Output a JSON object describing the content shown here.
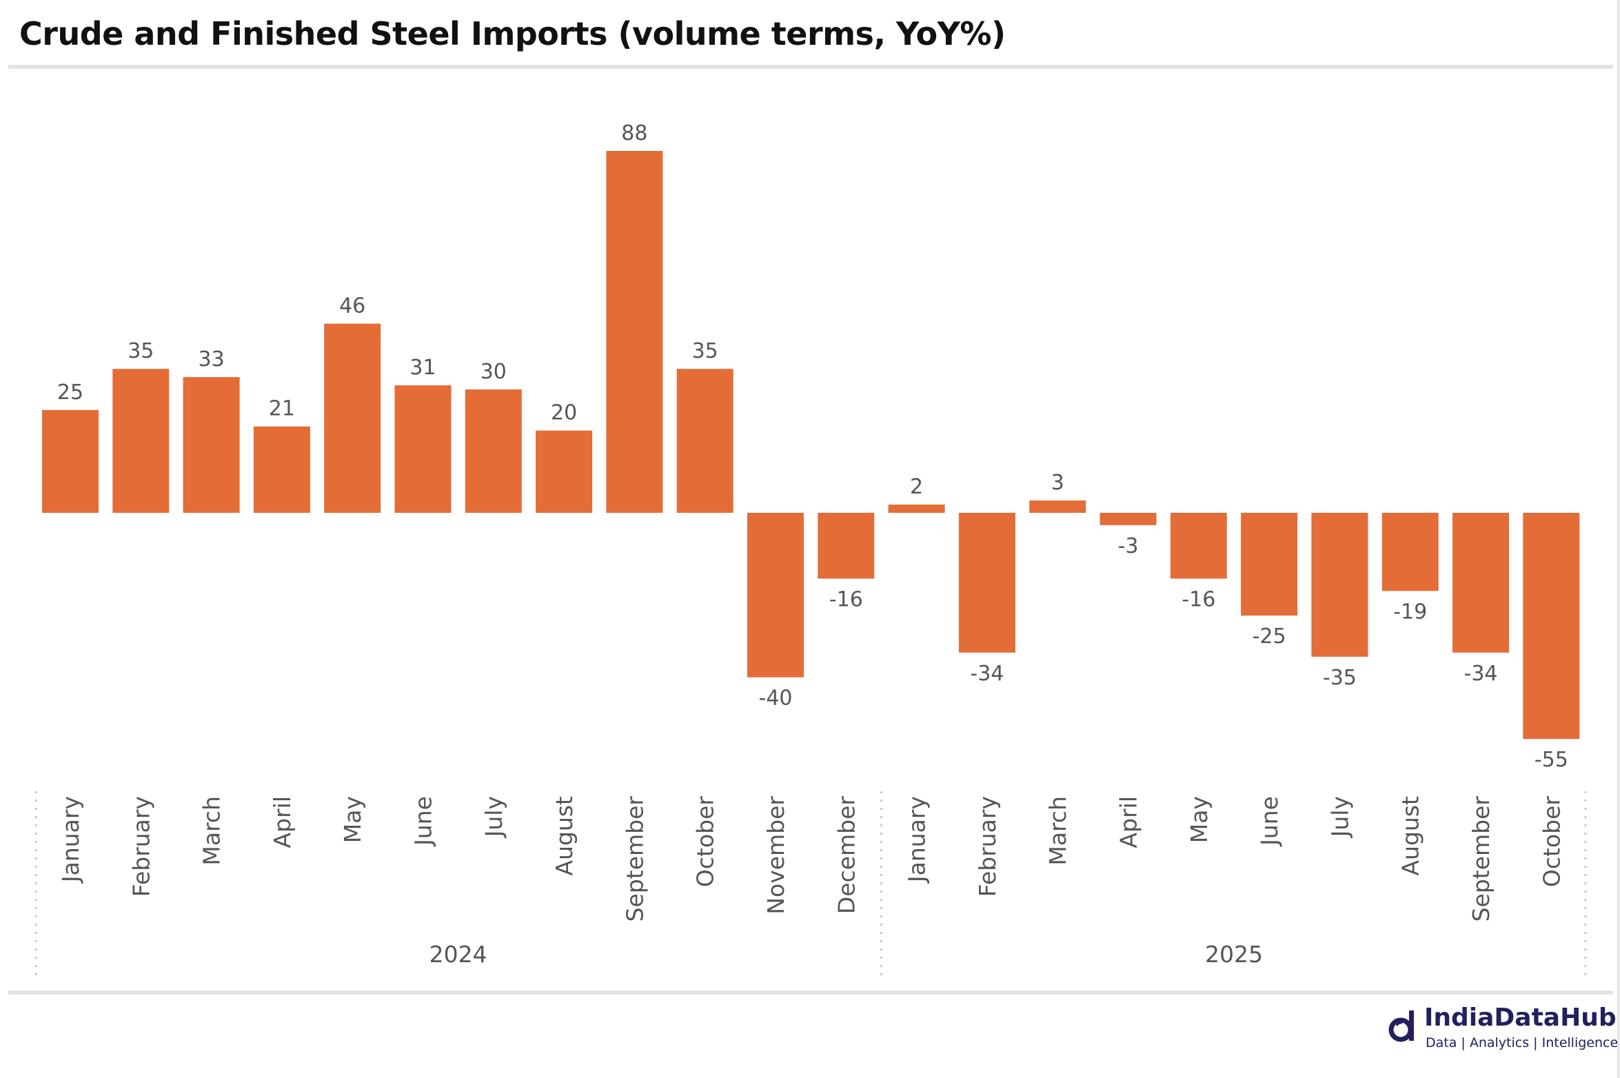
{
  "chart_data": {
    "type": "bar",
    "title": "Crude and Finished Steel Imports (volume terms, YoY%)",
    "xlabel": "",
    "ylabel": "",
    "categories": [
      "January",
      "February",
      "March",
      "April",
      "May",
      "June",
      "July",
      "August",
      "September",
      "October",
      "November",
      "December",
      "January",
      "February",
      "March",
      "April",
      "May",
      "June",
      "July",
      "August",
      "September",
      "October"
    ],
    "groups": [
      {
        "label": "2024",
        "count": 12
      },
      {
        "label": "2025",
        "count": 10
      }
    ],
    "values": [
      25,
      35,
      33,
      21,
      46,
      31,
      30,
      20,
      88,
      35,
      -40,
      -16,
      2,
      -34,
      3,
      -3,
      -16,
      -25,
      -35,
      -19,
      -34,
      -55
    ],
    "ylim": [
      -60,
      95
    ],
    "grid": false,
    "data_labels": true,
    "bar_color": "#E46C37"
  },
  "logo": {
    "brand": "IndiaDataHub",
    "tagline": "Data | Analytics | Intelligence"
  }
}
